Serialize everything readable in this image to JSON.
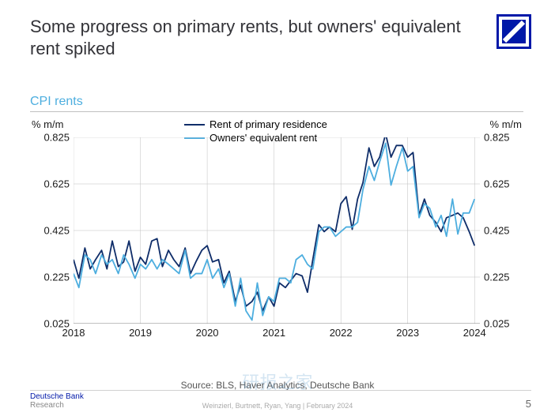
{
  "header": {
    "title": "Some progress on primary rents, but owners' equivalent rent spiked"
  },
  "logo": {
    "bg": "#0018a8",
    "stroke": "#ffffff"
  },
  "chart": {
    "subtitle": "CPI rents",
    "subtitle_color": "#4daedf",
    "ylabel": "% m/m",
    "type": "line",
    "ylim": [
      0.025,
      0.825
    ],
    "yticks": [
      0.025,
      0.225,
      0.425,
      0.625,
      0.825
    ],
    "xlim": [
      2018,
      2024.08
    ],
    "xticks": [
      2018,
      2019,
      2020,
      2021,
      2022,
      2023,
      2024
    ],
    "grid_color": "#bfbfbf",
    "background_color": "#ffffff",
    "axis_label_fontsize": 13,
    "tick_fontsize": 13,
    "line_width": 1.8,
    "legend": {
      "items": [
        {
          "label": "Rent of primary residence",
          "color": "#0f2d69"
        },
        {
          "label": "Owners' equivalent rent",
          "color": "#4daedf"
        }
      ]
    },
    "series": [
      {
        "name": "Rent of primary residence",
        "color": "#0f2d69",
        "x": [
          2018.0,
          2018.08,
          2018.17,
          2018.25,
          2018.33,
          2018.42,
          2018.5,
          2018.58,
          2018.67,
          2018.75,
          2018.83,
          2018.92,
          2019.0,
          2019.08,
          2019.17,
          2019.25,
          2019.33,
          2019.42,
          2019.5,
          2019.58,
          2019.67,
          2019.75,
          2019.83,
          2019.92,
          2020.0,
          2020.08,
          2020.17,
          2020.25,
          2020.33,
          2020.42,
          2020.5,
          2020.58,
          2020.67,
          2020.75,
          2020.83,
          2020.92,
          2021.0,
          2021.08,
          2021.17,
          2021.25,
          2021.33,
          2021.42,
          2021.5,
          2021.58,
          2021.67,
          2021.75,
          2021.83,
          2021.92,
          2022.0,
          2022.08,
          2022.17,
          2022.25,
          2022.33,
          2022.42,
          2022.5,
          2022.58,
          2022.67,
          2022.75,
          2022.83,
          2022.92,
          2023.0,
          2023.08,
          2023.17,
          2023.25,
          2023.33,
          2023.42,
          2023.5,
          2023.58,
          2023.67,
          2023.75,
          2023.83,
          2023.92,
          2024.0
        ],
        "y": [
          0.3,
          0.22,
          0.35,
          0.26,
          0.3,
          0.34,
          0.26,
          0.38,
          0.27,
          0.29,
          0.38,
          0.25,
          0.31,
          0.28,
          0.38,
          0.39,
          0.27,
          0.34,
          0.3,
          0.27,
          0.35,
          0.24,
          0.29,
          0.34,
          0.36,
          0.29,
          0.3,
          0.2,
          0.25,
          0.12,
          0.19,
          0.1,
          0.12,
          0.16,
          0.08,
          0.14,
          0.1,
          0.2,
          0.18,
          0.21,
          0.24,
          0.23,
          0.16,
          0.3,
          0.45,
          0.42,
          0.44,
          0.42,
          0.54,
          0.57,
          0.43,
          0.56,
          0.63,
          0.78,
          0.7,
          0.74,
          0.84,
          0.74,
          0.79,
          0.79,
          0.74,
          0.76,
          0.49,
          0.56,
          0.49,
          0.46,
          0.42,
          0.48,
          0.49,
          0.5,
          0.48,
          0.42,
          0.36
        ]
      },
      {
        "name": "Owners' equivalent rent",
        "color": "#4daedf",
        "x": [
          2018.0,
          2018.08,
          2018.17,
          2018.25,
          2018.33,
          2018.42,
          2018.5,
          2018.58,
          2018.67,
          2018.75,
          2018.83,
          2018.92,
          2019.0,
          2019.08,
          2019.17,
          2019.25,
          2019.33,
          2019.42,
          2019.5,
          2019.58,
          2019.67,
          2019.75,
          2019.83,
          2019.92,
          2020.0,
          2020.08,
          2020.17,
          2020.25,
          2020.33,
          2020.42,
          2020.5,
          2020.58,
          2020.67,
          2020.75,
          2020.83,
          2020.92,
          2021.0,
          2021.08,
          2021.17,
          2021.25,
          2021.33,
          2021.42,
          2021.5,
          2021.58,
          2021.67,
          2021.75,
          2021.83,
          2021.92,
          2022.0,
          2022.08,
          2022.17,
          2022.25,
          2022.33,
          2022.42,
          2022.5,
          2022.58,
          2022.67,
          2022.75,
          2022.83,
          2022.92,
          2023.0,
          2023.08,
          2023.17,
          2023.25,
          2023.33,
          2023.42,
          2023.5,
          2023.58,
          2023.67,
          2023.75,
          2023.83,
          2023.92,
          2024.0
        ],
        "y": [
          0.24,
          0.18,
          0.32,
          0.3,
          0.24,
          0.32,
          0.28,
          0.3,
          0.24,
          0.32,
          0.28,
          0.22,
          0.28,
          0.26,
          0.3,
          0.26,
          0.3,
          0.28,
          0.26,
          0.24,
          0.34,
          0.22,
          0.24,
          0.24,
          0.3,
          0.22,
          0.26,
          0.18,
          0.24,
          0.1,
          0.22,
          0.08,
          0.04,
          0.2,
          0.06,
          0.14,
          0.12,
          0.22,
          0.22,
          0.2,
          0.3,
          0.32,
          0.28,
          0.26,
          0.42,
          0.44,
          0.44,
          0.4,
          0.42,
          0.44,
          0.44,
          0.46,
          0.6,
          0.7,
          0.64,
          0.72,
          0.8,
          0.62,
          0.7,
          0.78,
          0.68,
          0.7,
          0.48,
          0.54,
          0.52,
          0.44,
          0.49,
          0.4,
          0.56,
          0.41,
          0.5,
          0.5,
          0.56
        ]
      }
    ]
  },
  "source": "Source: BLS, Haver Analytics, Deutsche Bank",
  "footer": {
    "brand_line1": "Deutsche Bank",
    "brand_line2": "Research",
    "center": "Weinzierl, Burtnett, Ryan, Yang  |  February 2024",
    "page": "5"
  },
  "watermark": "研报之家"
}
